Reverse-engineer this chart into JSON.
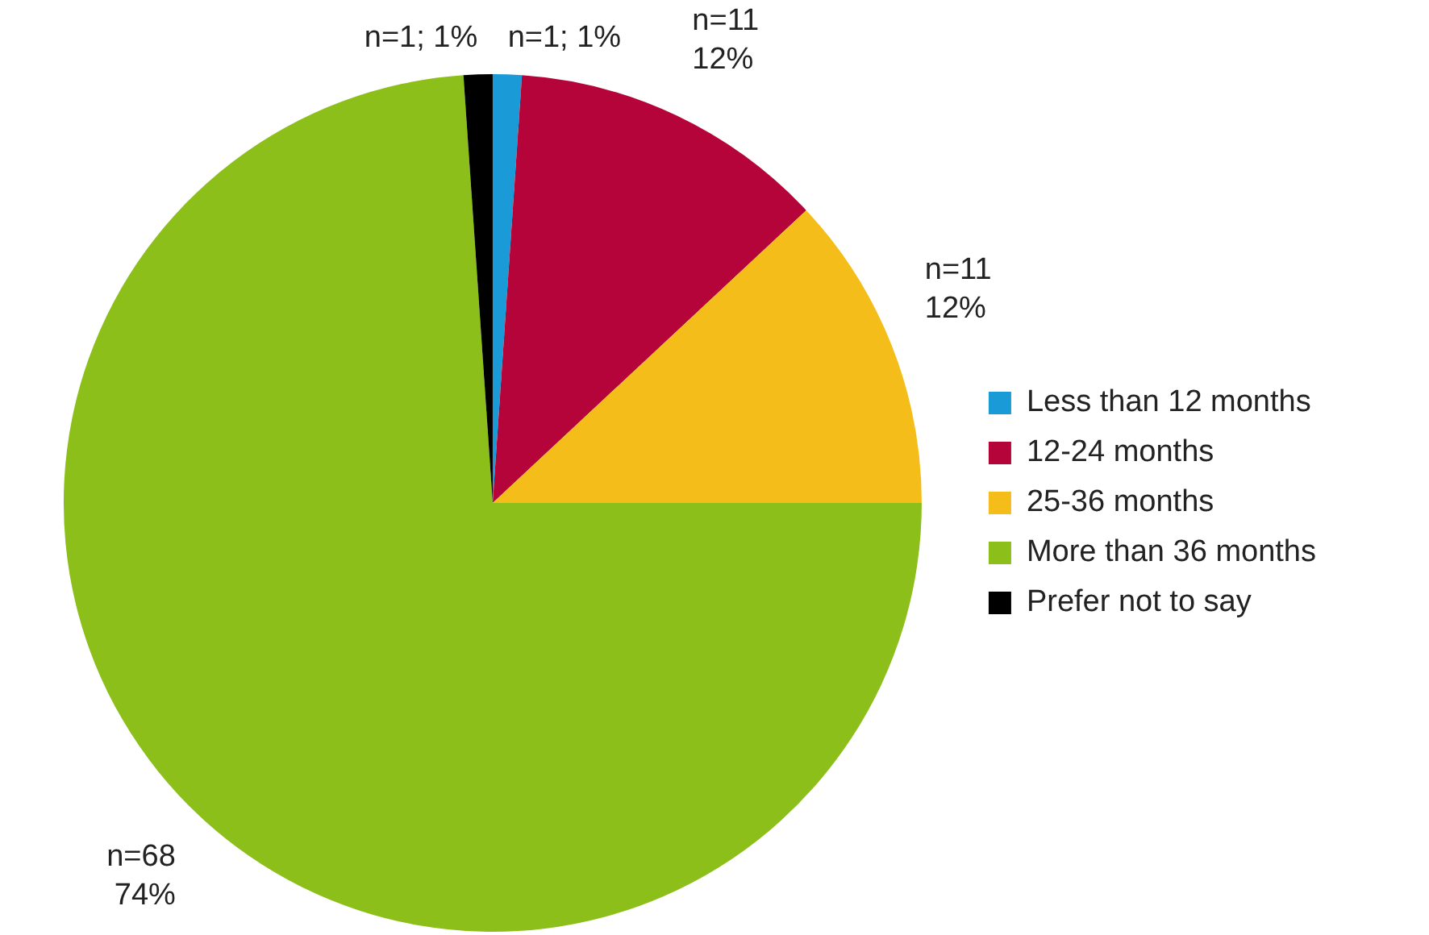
{
  "chart_data": {
    "type": "pie",
    "categories": [
      "Less than 12 months",
      "12-24 months",
      "25-36 months",
      "More than 36 months",
      "Prefer not to say"
    ],
    "values": [
      1,
      11,
      11,
      68,
      1
    ],
    "colors": [
      "#1a9ad6",
      "#b5043a",
      "#f5bd1a",
      "#8cbf1a",
      "#000000"
    ],
    "value_labels": [
      "n=1; 1%",
      "n=11\n12%",
      "n=11\n12%",
      "n=68\n74%",
      "n=1; 1%"
    ],
    "legend": "right"
  }
}
